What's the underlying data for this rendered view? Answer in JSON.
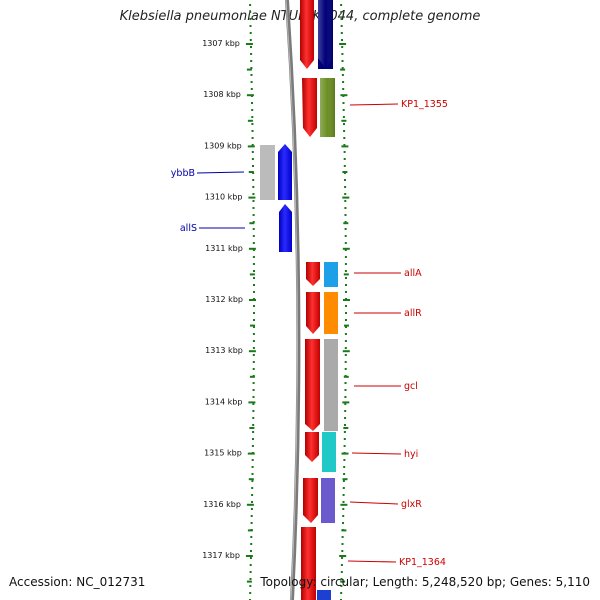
{
  "title": "Klebsiella pneumoniae NTUH-K2044, complete genome",
  "footer": {
    "accession": "Accession: NC_012731",
    "summary": "Topology: circular; Length: 5,248,520 bp; Genes: 5,110"
  },
  "ticks": [
    "1307 kbp",
    "1308 kbp",
    "1309 kbp",
    "1310 kbp",
    "1311 kbp",
    "1312 kbp",
    "1313 kbp",
    "1314 kbp",
    "1315 kbp",
    "1316 kbp",
    "1317 kbp"
  ],
  "colors": {
    "forward_label": "#cc0000",
    "reverse_label": "#0000aa",
    "backbone": "#7a7a7a",
    "scale_dots": "#1a7a1a"
  },
  "forward_genes": [
    {
      "label": "",
      "cog_color": "#00007a"
    },
    {
      "label": "KP1_1355",
      "cog_color": "#6b8e23"
    },
    {
      "label": "allA",
      "cog_color": "#1ea0e8"
    },
    {
      "label": "allR",
      "cog_color": "#ff8c00"
    },
    {
      "label": "gcl",
      "cog_color": "#aaaaaa"
    },
    {
      "label": "hyi",
      "cog_color": "#20c8c8"
    },
    {
      "label": "glxR",
      "cog_color": "#6a5acd"
    },
    {
      "label": "KP1_1364",
      "cog_color": "#1e40d0"
    }
  ],
  "reverse_genes": [
    {
      "label": "ybbB",
      "cog_color": "#bbbbbb"
    },
    {
      "label": "allS",
      "cog_color": ""
    }
  ]
}
